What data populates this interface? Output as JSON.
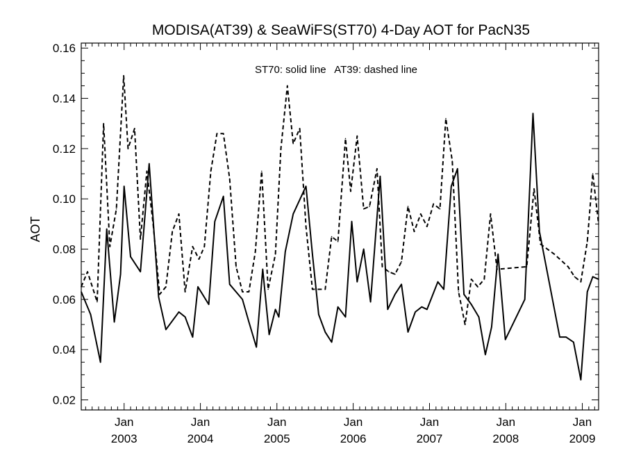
{
  "chart_data": {
    "type": "line",
    "title": "MODISA(AT39) & SeaWiFS(ST70) 4-Day AOT for PacN35",
    "xlabel": "",
    "ylabel": "AOT",
    "annotation": "ST70: solid line   AT39: dashed line",
    "xlim": [
      "2002-06-10",
      "2009-03-20"
    ],
    "ylim": [
      0.016,
      0.162
    ],
    "y_ticks": [
      0.02,
      0.04,
      0.06,
      0.08,
      0.1,
      0.12,
      0.14,
      0.16
    ],
    "y_tick_labels": [
      "0.02",
      "0.04",
      "0.06",
      "0.08",
      "0.10",
      "0.12",
      "0.14",
      "0.16"
    ],
    "x_ticks": [
      {
        "date": "2003-01-01",
        "month": "Jan",
        "year": "2003"
      },
      {
        "date": "2004-01-01",
        "month": "Jan",
        "year": "2004"
      },
      {
        "date": "2005-01-01",
        "month": "Jan",
        "year": "2005"
      },
      {
        "date": "2006-01-01",
        "month": "Jan",
        "year": "2006"
      },
      {
        "date": "2007-01-01",
        "month": "Jan",
        "year": "2007"
      },
      {
        "date": "2008-01-01",
        "month": "Jan",
        "year": "2008"
      },
      {
        "date": "2009-01-01",
        "month": "Jan",
        "year": "2009"
      }
    ],
    "grid": false,
    "series": [
      {
        "name": "ST70",
        "style": "solid",
        "color": "#000000",
        "points": [
          [
            "2002-06-10",
            0.063
          ],
          [
            "2002-07-25",
            0.054
          ],
          [
            "2002-09-10",
            0.035
          ],
          [
            "2002-10-10",
            0.088
          ],
          [
            "2002-11-15",
            0.051
          ],
          [
            "2002-12-15",
            0.07
          ],
          [
            "2003-01-01",
            0.105
          ],
          [
            "2003-02-01",
            0.077
          ],
          [
            "2003-03-20",
            0.071
          ],
          [
            "2003-05-01",
            0.114
          ],
          [
            "2003-06-15",
            0.061
          ],
          [
            "2003-07-20",
            0.048
          ],
          [
            "2003-09-20",
            0.055
          ],
          [
            "2003-10-20",
            0.053
          ],
          [
            "2003-11-25",
            0.045
          ],
          [
            "2003-12-20",
            0.065
          ],
          [
            "2004-02-10",
            0.058
          ],
          [
            "2004-03-10",
            0.091
          ],
          [
            "2004-04-20",
            0.101
          ],
          [
            "2004-05-20",
            0.066
          ],
          [
            "2004-07-20",
            0.06
          ],
          [
            "2004-08-20",
            0.051
          ],
          [
            "2004-09-25",
            0.041
          ],
          [
            "2004-10-25",
            0.072
          ],
          [
            "2004-11-25",
            0.046
          ],
          [
            "2004-12-25",
            0.056
          ],
          [
            "2005-01-10",
            0.053
          ],
          [
            "2005-02-10",
            0.079
          ],
          [
            "2005-03-20",
            0.094
          ],
          [
            "2005-05-20",
            0.105
          ],
          [
            "2005-06-20",
            0.078
          ],
          [
            "2005-07-20",
            0.054
          ],
          [
            "2005-08-20",
            0.047
          ],
          [
            "2005-09-20",
            0.043
          ],
          [
            "2005-10-20",
            0.057
          ],
          [
            "2005-11-25",
            0.053
          ],
          [
            "2005-12-25",
            0.091
          ],
          [
            "2006-01-20",
            0.067
          ],
          [
            "2006-02-20",
            0.08
          ],
          [
            "2006-03-25",
            0.059
          ],
          [
            "2006-05-10",
            0.109
          ],
          [
            "2006-06-15",
            0.056
          ],
          [
            "2006-07-20",
            0.062
          ],
          [
            "2006-08-20",
            0.066
          ],
          [
            "2006-09-20",
            0.047
          ],
          [
            "2006-10-25",
            0.055
          ],
          [
            "2006-11-25",
            0.057
          ],
          [
            "2006-12-20",
            0.056
          ],
          [
            "2007-02-10",
            0.067
          ],
          [
            "2007-03-10",
            0.064
          ],
          [
            "2007-04-15",
            0.105
          ],
          [
            "2007-05-15",
            0.112
          ],
          [
            "2007-06-15",
            0.062
          ],
          [
            "2007-07-20",
            0.058
          ],
          [
            "2007-08-25",
            0.053
          ],
          [
            "2007-09-25",
            0.038
          ],
          [
            "2007-10-25",
            0.049
          ],
          [
            "2007-11-25",
            0.078
          ],
          [
            "2007-12-30",
            0.044
          ],
          [
            "2008-04-01",
            0.06
          ],
          [
            "2008-05-10",
            0.134
          ],
          [
            "2008-06-10",
            0.087
          ],
          [
            "2008-09-15",
            0.045
          ],
          [
            "2008-10-15",
            0.045
          ],
          [
            "2008-11-20",
            0.043
          ],
          [
            "2008-12-25",
            0.028
          ],
          [
            "2009-01-25",
            0.063
          ],
          [
            "2009-02-20",
            0.069
          ],
          [
            "2009-03-20",
            0.068
          ]
        ]
      },
      {
        "name": "AT39",
        "style": "dashed",
        "color": "#000000",
        "points": [
          [
            "2002-06-10",
            0.065
          ],
          [
            "2002-07-10",
            0.071
          ],
          [
            "2002-08-25",
            0.059
          ],
          [
            "2002-09-25",
            0.13
          ],
          [
            "2002-10-25",
            0.081
          ],
          [
            "2002-11-25",
            0.096
          ],
          [
            "2002-12-30",
            0.149
          ],
          [
            "2003-01-20",
            0.12
          ],
          [
            "2003-02-20",
            0.128
          ],
          [
            "2003-03-20",
            0.084
          ],
          [
            "2003-04-20",
            0.111
          ],
          [
            "2003-05-20",
            0.09
          ],
          [
            "2003-06-20",
            0.062
          ],
          [
            "2003-07-20",
            0.065
          ],
          [
            "2003-08-20",
            0.087
          ],
          [
            "2003-09-20",
            0.094
          ],
          [
            "2003-10-20",
            0.063
          ],
          [
            "2003-11-25",
            0.081
          ],
          [
            "2003-12-25",
            0.076
          ],
          [
            "2004-01-20",
            0.081
          ],
          [
            "2004-02-20",
            0.111
          ],
          [
            "2004-03-20",
            0.126
          ],
          [
            "2004-04-20",
            0.126
          ],
          [
            "2004-05-20",
            0.108
          ],
          [
            "2004-06-20",
            0.073
          ],
          [
            "2004-07-20",
            0.063
          ],
          [
            "2004-08-20",
            0.063
          ],
          [
            "2004-09-20",
            0.079
          ],
          [
            "2004-10-20",
            0.111
          ],
          [
            "2004-11-20",
            0.064
          ],
          [
            "2004-12-25",
            0.078
          ],
          [
            "2005-01-20",
            0.12
          ],
          [
            "2005-02-20",
            0.145
          ],
          [
            "2005-03-20",
            0.122
          ],
          [
            "2005-04-20",
            0.128
          ],
          [
            "2005-05-20",
            0.089
          ],
          [
            "2005-06-20",
            0.064
          ],
          [
            "2005-07-20",
            0.064
          ],
          [
            "2005-08-20",
            0.064
          ],
          [
            "2005-09-20",
            0.085
          ],
          [
            "2005-10-20",
            0.083
          ],
          [
            "2005-11-25",
            0.124
          ],
          [
            "2005-12-20",
            0.103
          ],
          [
            "2006-01-20",
            0.125
          ],
          [
            "2006-02-20",
            0.096
          ],
          [
            "2006-03-20",
            0.097
          ],
          [
            "2006-04-25",
            0.112
          ],
          [
            "2006-05-20",
            0.073
          ],
          [
            "2006-06-20",
            0.071
          ],
          [
            "2006-07-20",
            0.07
          ],
          [
            "2006-08-20",
            0.075
          ],
          [
            "2006-09-20",
            0.097
          ],
          [
            "2006-10-20",
            0.087
          ],
          [
            "2006-11-20",
            0.094
          ],
          [
            "2006-12-20",
            0.089
          ],
          [
            "2007-01-20",
            0.098
          ],
          [
            "2007-02-20",
            0.096
          ],
          [
            "2007-03-20",
            0.132
          ],
          [
            "2007-04-20",
            0.115
          ],
          [
            "2007-05-20",
            0.063
          ],
          [
            "2007-06-20",
            0.05
          ],
          [
            "2007-07-20",
            0.068
          ],
          [
            "2007-08-20",
            0.065
          ],
          [
            "2007-09-20",
            0.068
          ],
          [
            "2007-10-20",
            0.094
          ],
          [
            "2007-11-20",
            0.072
          ],
          [
            "2008-04-10",
            0.073
          ],
          [
            "2008-05-15",
            0.104
          ],
          [
            "2008-06-15",
            0.082
          ],
          [
            "2008-08-20",
            0.078
          ],
          [
            "2008-10-25",
            0.073
          ],
          [
            "2008-11-25",
            0.069
          ],
          [
            "2008-12-25",
            0.067
          ],
          [
            "2009-01-25",
            0.083
          ],
          [
            "2009-02-20",
            0.11
          ],
          [
            "2009-03-20",
            0.09
          ]
        ]
      }
    ]
  }
}
